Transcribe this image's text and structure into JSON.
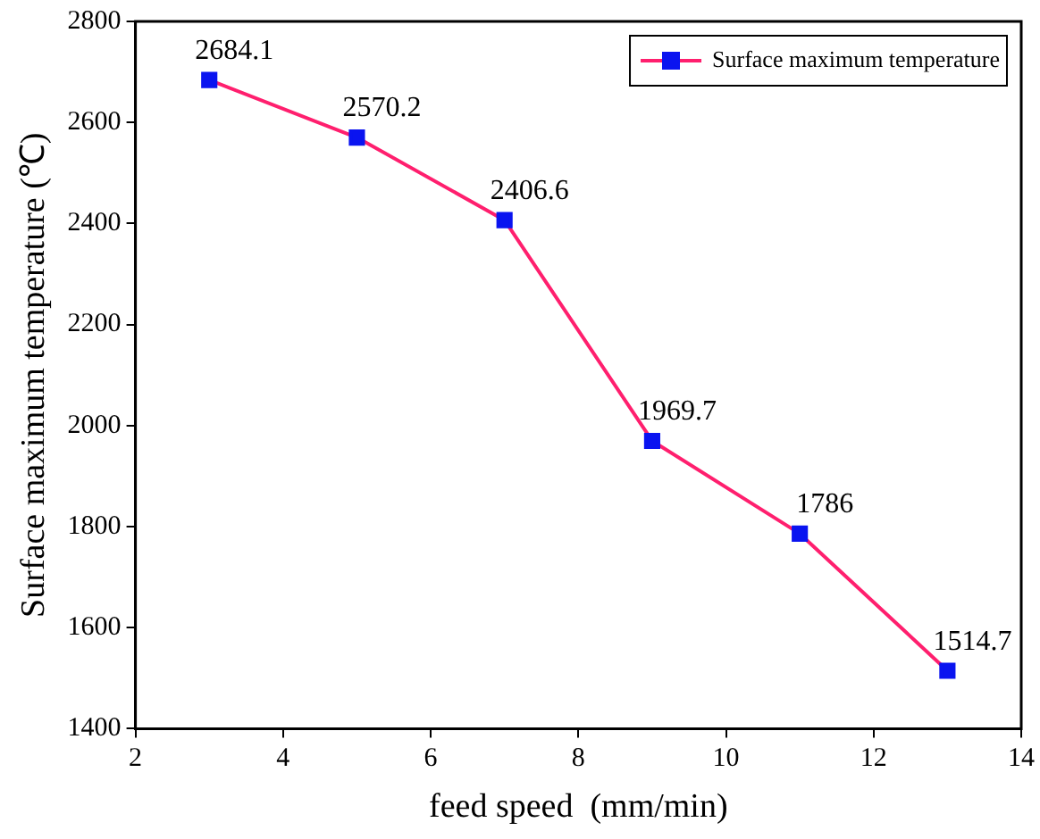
{
  "chart_data": {
    "type": "line",
    "xlabel": "feed speed  (mm/min)",
    "ylabel": "Surface maximum temperature (℃)",
    "x": [
      3,
      5,
      7,
      9,
      11,
      13
    ],
    "series": [
      {
        "name": "Surface maximum temperature",
        "color": "#ff1f6e",
        "colors": [
          "#0a14f0",
          "#0a14f0",
          "#0a14f0",
          "#0a14f0",
          "#0a14f0",
          "#0a14f0"
        ],
        "values": [
          2684.1,
          2570.2,
          2406.6,
          1969.7,
          1786,
          1514.7
        ]
      }
    ],
    "xlim": [
      2,
      14
    ],
    "xticks": [
      2,
      4,
      6,
      8,
      10,
      12,
      14
    ],
    "ylim": [
      1400,
      2800
    ],
    "yticks": [
      1400,
      1600,
      1800,
      2000,
      2200,
      2400,
      2600,
      2800
    ],
    "marker": "square",
    "line_style": "solid",
    "legend": "top right",
    "data_labels": true,
    "grid": false
  }
}
